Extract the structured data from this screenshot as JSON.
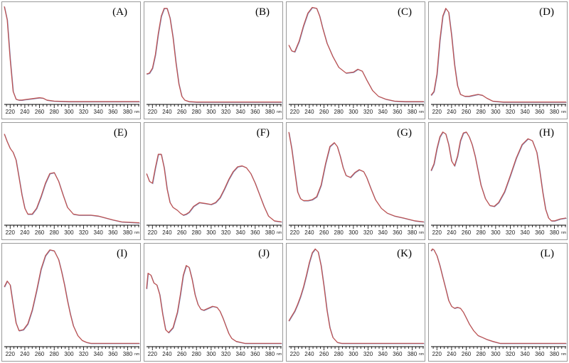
{
  "page": {
    "background": "#ffffff"
  },
  "style": {
    "curve_color": "#c0504d",
    "curve_shadow": "#7a86b8",
    "axis_color": "#000000"
  },
  "chart_data": [
    {
      "type": "line",
      "label": "(A)",
      "unit": "nm",
      "xlim": [
        212,
        396
      ],
      "ylim": [
        0,
        1
      ],
      "xticks": [
        220,
        240,
        260,
        280,
        300,
        320,
        340,
        360,
        380
      ],
      "x": [
        212,
        216,
        220,
        224,
        228,
        232,
        236,
        240,
        250,
        260,
        265,
        270,
        280,
        300,
        340,
        396
      ],
      "y": [
        1.0,
        0.86,
        0.45,
        0.12,
        0.04,
        0.03,
        0.03,
        0.035,
        0.045,
        0.055,
        0.05,
        0.03,
        0.02,
        0.015,
        0.015,
        0.015
      ]
    },
    {
      "type": "line",
      "label": "(B)",
      "unit": "nm",
      "xlim": [
        212,
        396
      ],
      "ylim": [
        0,
        1
      ],
      "xticks": [
        220,
        240,
        260,
        280,
        300,
        320,
        340,
        360,
        380
      ],
      "x": [
        212,
        216,
        220,
        224,
        228,
        232,
        236,
        240,
        244,
        248,
        252,
        256,
        260,
        264,
        270,
        280,
        300,
        396
      ],
      "y": [
        0.3,
        0.31,
        0.36,
        0.5,
        0.72,
        0.9,
        0.98,
        0.98,
        0.88,
        0.68,
        0.42,
        0.2,
        0.07,
        0.03,
        0.015,
        0.01,
        0.01,
        0.01
      ]
    },
    {
      "type": "line",
      "label": "(C)",
      "unit": "nm",
      "xlim": [
        212,
        396
      ],
      "ylim": [
        0,
        1
      ],
      "xticks": [
        220,
        240,
        260,
        280,
        300,
        320,
        340,
        360,
        380
      ],
      "x": [
        212,
        216,
        220,
        226,
        232,
        238,
        244,
        250,
        254,
        258,
        264,
        272,
        280,
        290,
        300,
        306,
        312,
        318,
        326,
        334,
        344,
        356,
        370,
        396
      ],
      "y": [
        0.6,
        0.54,
        0.53,
        0.64,
        0.8,
        0.93,
        0.99,
        0.98,
        0.9,
        0.78,
        0.62,
        0.48,
        0.37,
        0.31,
        0.32,
        0.35,
        0.33,
        0.24,
        0.13,
        0.07,
        0.04,
        0.02,
        0.015,
        0.015
      ]
    },
    {
      "type": "line",
      "label": "(D)",
      "unit": "nm",
      "xlim": [
        212,
        396
      ],
      "ylim": [
        0,
        1
      ],
      "xticks": [
        220,
        240,
        260,
        280,
        300,
        320,
        340,
        360,
        380
      ],
      "x": [
        212,
        216,
        220,
        224,
        228,
        232,
        236,
        240,
        244,
        248,
        252,
        258,
        264,
        270,
        276,
        282,
        288,
        296,
        310,
        396
      ],
      "y": [
        0.08,
        0.12,
        0.3,
        0.65,
        0.9,
        0.98,
        0.94,
        0.7,
        0.4,
        0.18,
        0.09,
        0.07,
        0.07,
        0.08,
        0.09,
        0.08,
        0.05,
        0.02,
        0.01,
        0.01
      ]
    },
    {
      "type": "line",
      "label": "(E)",
      "unit": "nm",
      "xlim": [
        212,
        396
      ],
      "ylim": [
        0,
        1
      ],
      "xticks": [
        220,
        240,
        260,
        280,
        300,
        320,
        340,
        360,
        380
      ],
      "x": [
        212,
        216,
        220,
        224,
        228,
        232,
        236,
        240,
        244,
        250,
        256,
        262,
        268,
        274,
        280,
        286,
        292,
        298,
        306,
        314,
        322,
        330,
        340,
        350,
        360,
        372,
        396
      ],
      "y": [
        0.93,
        0.85,
        0.78,
        0.74,
        0.66,
        0.48,
        0.3,
        0.16,
        0.1,
        0.1,
        0.16,
        0.28,
        0.42,
        0.52,
        0.53,
        0.44,
        0.3,
        0.17,
        0.1,
        0.09,
        0.09,
        0.09,
        0.08,
        0.06,
        0.04,
        0.02,
        0.01
      ]
    },
    {
      "type": "line",
      "label": "(F)",
      "unit": "nm",
      "xlim": [
        212,
        396
      ],
      "ylim": [
        0,
        1
      ],
      "xticks": [
        220,
        240,
        260,
        280,
        300,
        320,
        340,
        360,
        380
      ],
      "x": [
        212,
        216,
        220,
        224,
        228,
        232,
        236,
        240,
        244,
        248,
        254,
        258,
        262,
        266,
        270,
        276,
        284,
        292,
        300,
        306,
        312,
        318,
        324,
        330,
        336,
        342,
        348,
        354,
        360,
        366,
        372,
        378,
        386,
        396
      ],
      "y": [
        0.52,
        0.44,
        0.42,
        0.58,
        0.72,
        0.72,
        0.58,
        0.36,
        0.22,
        0.17,
        0.14,
        0.11,
        0.09,
        0.1,
        0.12,
        0.18,
        0.22,
        0.21,
        0.2,
        0.22,
        0.27,
        0.36,
        0.46,
        0.54,
        0.59,
        0.6,
        0.58,
        0.52,
        0.42,
        0.3,
        0.18,
        0.08,
        0.03,
        0.02
      ]
    },
    {
      "type": "line",
      "label": "(G)",
      "unit": "nm",
      "xlim": [
        212,
        396
      ],
      "ylim": [
        0,
        1
      ],
      "xticks": [
        220,
        240,
        260,
        280,
        300,
        320,
        340,
        360,
        380
      ],
      "x": [
        212,
        216,
        220,
        224,
        228,
        232,
        238,
        244,
        250,
        256,
        262,
        268,
        274,
        278,
        282,
        286,
        290,
        296,
        302,
        308,
        314,
        318,
        324,
        330,
        338,
        346,
        356,
        368,
        384,
        396
      ],
      "y": [
        0.95,
        0.78,
        0.55,
        0.33,
        0.26,
        0.24,
        0.24,
        0.25,
        0.28,
        0.4,
        0.62,
        0.8,
        0.84,
        0.8,
        0.7,
        0.58,
        0.5,
        0.48,
        0.53,
        0.56,
        0.54,
        0.48,
        0.36,
        0.25,
        0.16,
        0.11,
        0.08,
        0.06,
        0.03,
        0.02
      ]
    },
    {
      "type": "line",
      "label": "(H)",
      "unit": "nm",
      "xlim": [
        212,
        396
      ],
      "ylim": [
        0,
        1
      ],
      "xticks": [
        220,
        240,
        260,
        280,
        300,
        320,
        340,
        360,
        380
      ],
      "x": [
        212,
        216,
        220,
        224,
        228,
        232,
        236,
        240,
        244,
        248,
        252,
        256,
        260,
        264,
        268,
        272,
        276,
        280,
        286,
        292,
        298,
        304,
        312,
        320,
        328,
        336,
        344,
        350,
        356,
        360,
        364,
        368,
        372,
        376,
        380,
        388,
        396
      ],
      "y": [
        0.55,
        0.62,
        0.78,
        0.9,
        0.95,
        0.93,
        0.82,
        0.65,
        0.6,
        0.7,
        0.86,
        0.94,
        0.95,
        0.9,
        0.82,
        0.7,
        0.55,
        0.4,
        0.26,
        0.19,
        0.18,
        0.22,
        0.33,
        0.5,
        0.68,
        0.82,
        0.88,
        0.86,
        0.74,
        0.55,
        0.33,
        0.15,
        0.06,
        0.03,
        0.03,
        0.05,
        0.06
      ]
    },
    {
      "type": "line",
      "label": "(I)",
      "unit": "nm",
      "xlim": [
        212,
        396
      ],
      "ylim": [
        0,
        1
      ],
      "xticks": [
        220,
        240,
        260,
        280,
        300,
        320,
        340,
        360,
        380
      ],
      "x": [
        212,
        216,
        220,
        224,
        228,
        232,
        238,
        244,
        250,
        256,
        262,
        268,
        274,
        280,
        286,
        290,
        294,
        298,
        302,
        306,
        312,
        318,
        324,
        330,
        340,
        350,
        370,
        396
      ],
      "y": [
        0.6,
        0.66,
        0.62,
        0.42,
        0.23,
        0.15,
        0.16,
        0.22,
        0.36,
        0.56,
        0.78,
        0.92,
        0.98,
        0.97,
        0.88,
        0.76,
        0.62,
        0.46,
        0.32,
        0.2,
        0.1,
        0.05,
        0.03,
        0.02,
        0.02,
        0.02,
        0.02,
        0.02
      ]
    },
    {
      "type": "line",
      "label": "(J)",
      "unit": "nm",
      "xlim": [
        212,
        396
      ],
      "ylim": [
        0,
        1
      ],
      "xticks": [
        220,
        240,
        260,
        280,
        300,
        320,
        340,
        360,
        380
      ],
      "x": [
        212,
        214,
        218,
        222,
        226,
        230,
        234,
        238,
        242,
        248,
        254,
        258,
        262,
        266,
        270,
        274,
        278,
        282,
        286,
        290,
        296,
        302,
        308,
        312,
        316,
        320,
        324,
        328,
        334,
        340,
        346,
        352,
        360,
        370,
        396
      ],
      "y": [
        0.58,
        0.74,
        0.72,
        0.64,
        0.62,
        0.52,
        0.32,
        0.16,
        0.13,
        0.18,
        0.34,
        0.52,
        0.72,
        0.82,
        0.8,
        0.68,
        0.52,
        0.42,
        0.37,
        0.36,
        0.38,
        0.4,
        0.39,
        0.35,
        0.28,
        0.2,
        0.12,
        0.07,
        0.04,
        0.03,
        0.02,
        0.02,
        0.02,
        0.02,
        0.02
      ]
    },
    {
      "type": "line",
      "label": "(K)",
      "unit": "nm",
      "xlim": [
        212,
        396
      ],
      "ylim": [
        0,
        1
      ],
      "xticks": [
        220,
        240,
        260,
        280,
        300,
        320,
        340,
        360,
        380
      ],
      "x": [
        212,
        216,
        220,
        224,
        228,
        232,
        236,
        240,
        244,
        248,
        252,
        256,
        260,
        264,
        268,
        272,
        278,
        284,
        292,
        300,
        396
      ],
      "y": [
        0.25,
        0.3,
        0.35,
        0.42,
        0.5,
        0.6,
        0.72,
        0.85,
        0.95,
        0.99,
        0.96,
        0.82,
        0.6,
        0.36,
        0.18,
        0.08,
        0.03,
        0.02,
        0.02,
        0.02,
        0.02
      ]
    },
    {
      "type": "line",
      "label": "(L)",
      "unit": "nm",
      "xlim": [
        212,
        396
      ],
      "ylim": [
        0,
        1
      ],
      "xticks": [
        220,
        240,
        260,
        280,
        300,
        320,
        340,
        360,
        380
      ],
      "x": [
        212,
        214,
        216,
        220,
        224,
        228,
        232,
        236,
        240,
        244,
        248,
        252,
        256,
        260,
        264,
        270,
        276,
        282,
        288,
        296,
        306,
        320,
        340,
        396
      ],
      "y": [
        0.97,
        0.99,
        0.98,
        0.92,
        0.82,
        0.7,
        0.58,
        0.46,
        0.4,
        0.38,
        0.39,
        0.38,
        0.34,
        0.28,
        0.22,
        0.15,
        0.1,
        0.08,
        0.06,
        0.04,
        0.02,
        0.02,
        0.02,
        0.02
      ]
    }
  ]
}
